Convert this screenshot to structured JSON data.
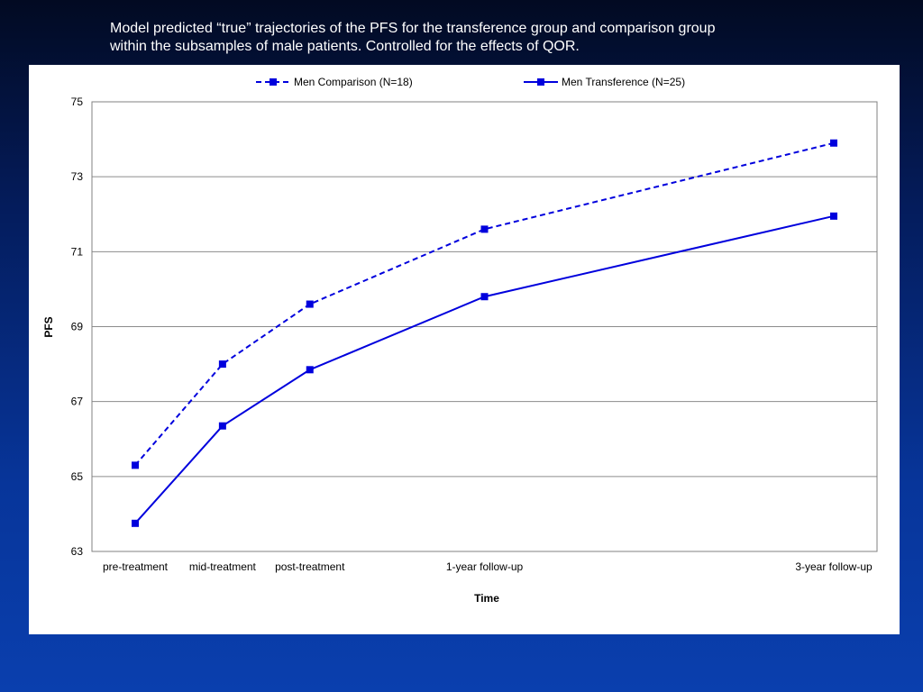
{
  "slide": {
    "title_line1": "Model predicted  “true” trajectories of the  PFS for the transference group and comparison group",
    "title_line2": "within the subsamples of male patients. Controlled for the effects of QOR."
  },
  "colors": {
    "series": "#0000dd",
    "grid": "#8c8c8c",
    "background_top": "#020a22",
    "background_bottom": "#0a3fae"
  },
  "chart_data": {
    "type": "line",
    "title": "",
    "xlabel": "Time",
    "ylabel": "PFS",
    "ylim": [
      63,
      75
    ],
    "yticks": [
      63,
      65,
      67,
      69,
      71,
      73,
      75
    ],
    "grid": true,
    "legend_position": "top",
    "categories": [
      "pre-treatment",
      "mid-treatment",
      "post-treatment",
      "1-year follow-up",
      "3-year follow-up"
    ],
    "x_spacing": [
      0,
      1,
      2,
      4,
      8
    ],
    "series": [
      {
        "name": "Men Comparison (N=18)",
        "line_style": "dashed",
        "marker": "square",
        "values": [
          65.3,
          68.0,
          69.6,
          71.6,
          73.9
        ]
      },
      {
        "name": "Men Transference (N=25)",
        "line_style": "solid",
        "marker": "square",
        "values": [
          63.75,
          66.35,
          67.85,
          69.8,
          71.95
        ]
      }
    ]
  }
}
